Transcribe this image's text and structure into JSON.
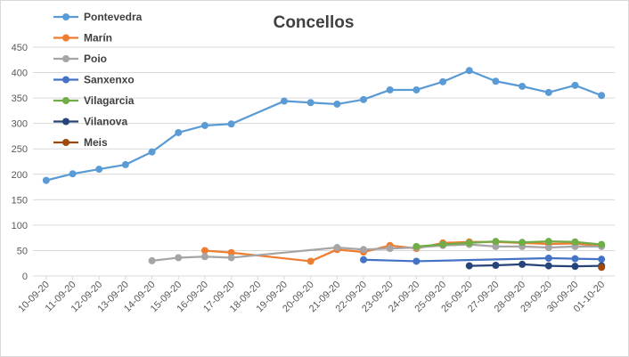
{
  "chart_data": {
    "type": "line",
    "title": "Concellos",
    "xlabel": "",
    "ylabel": "",
    "ylim": [
      0,
      450
    ],
    "yticks": [
      0,
      50,
      100,
      150,
      200,
      250,
      300,
      350,
      400,
      450
    ],
    "grid": true,
    "legend_position": "top-left",
    "categories": [
      "10-09-20",
      "11-09-20",
      "12-09-20",
      "13-09-20",
      "14-09-20",
      "15-09-20",
      "16-09-20",
      "17-09-20",
      "18-09-20",
      "19-09-20",
      "20-09-20",
      "21-09-20",
      "22-09-20",
      "23-09-20",
      "24-09-20",
      "25-09-20",
      "26-09-20",
      "27-09-20",
      "28-09-20",
      "29-09-20",
      "30-09-20",
      "01-10-20"
    ],
    "series": [
      {
        "name": "Pontevedra",
        "color": "#5b9bd5",
        "values": [
          188,
          201,
          210,
          219,
          244,
          282,
          296,
          299,
          null,
          344,
          341,
          338,
          347,
          366,
          366,
          382,
          404,
          383,
          373,
          361,
          375,
          355
        ]
      },
      {
        "name": "Marín",
        "color": "#ed7d31",
        "values": [
          null,
          null,
          null,
          null,
          null,
          null,
          50,
          46,
          null,
          null,
          29,
          52,
          47,
          60,
          54,
          65,
          67,
          67,
          65,
          63,
          64,
          59
        ]
      },
      {
        "name": "Poio",
        "color": "#a5a5a5",
        "values": [
          null,
          null,
          null,
          null,
          30,
          36,
          38,
          36,
          null,
          null,
          null,
          56,
          52,
          54,
          56,
          60,
          62,
          58,
          58,
          56,
          58,
          58
        ]
      },
      {
        "name": "Sanxenxo",
        "color": "#4472c4",
        "values": [
          null,
          null,
          null,
          null,
          null,
          null,
          null,
          null,
          null,
          null,
          null,
          null,
          32,
          null,
          29,
          null,
          null,
          null,
          null,
          35,
          34,
          33
        ]
      },
      {
        "name": "Vilagarcia",
        "color": "#70ad47",
        "values": [
          null,
          null,
          null,
          null,
          null,
          null,
          null,
          null,
          null,
          null,
          null,
          null,
          null,
          null,
          58,
          62,
          65,
          68,
          66,
          68,
          67,
          62
        ]
      },
      {
        "name": "Vilanova",
        "color": "#264478",
        "values": [
          null,
          null,
          null,
          null,
          null,
          null,
          null,
          null,
          null,
          null,
          null,
          null,
          null,
          null,
          null,
          null,
          20,
          21,
          23,
          20,
          19,
          20
        ]
      },
      {
        "name": "Meis",
        "color": "#9e480e",
        "values": [
          null,
          null,
          null,
          null,
          null,
          null,
          null,
          null,
          null,
          null,
          null,
          null,
          null,
          null,
          null,
          null,
          null,
          null,
          null,
          null,
          null,
          17
        ]
      }
    ]
  }
}
